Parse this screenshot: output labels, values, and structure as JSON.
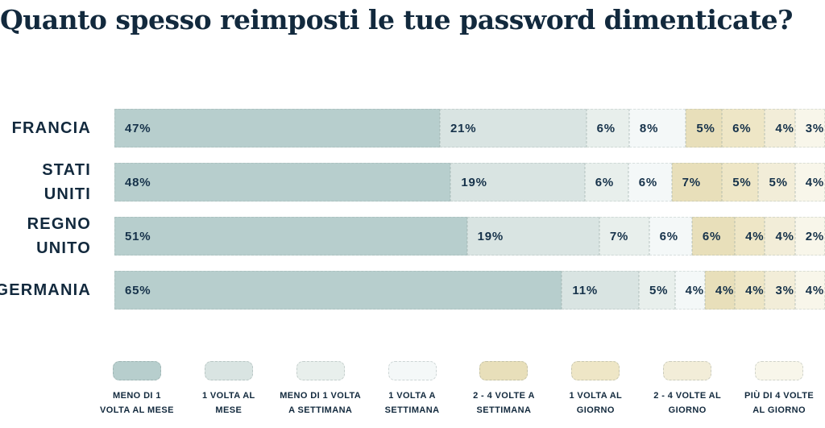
{
  "title": "Quanto spesso reimposti le tue password dimenticate?",
  "colors": {
    "text_dark": "#12293d",
    "value_label": "#16324a",
    "background": "#ffffff"
  },
  "chart_data": {
    "type": "bar",
    "variant": "horizontal-stacked",
    "title": "Quanto spesso reimposti le tue password dimenticate?",
    "unit": "%",
    "xlim": [
      0,
      100
    ],
    "grid": false,
    "legend_position": "bottom",
    "categories": [
      "FRANCIA",
      "STATI UNITI",
      "REGNO UNITO",
      "GERMANIA"
    ],
    "category_display": [
      "FRANCIA",
      "STATI\nUNITI",
      "REGNO\nUNITO",
      "GERMANIA"
    ],
    "series": [
      {
        "name": "MENO DI 1 VOLTA AL MESE",
        "legend_display": "MENO DI 1\nVOLTA AL MESE",
        "color": "#b7cecd",
        "values": [
          47,
          48,
          51,
          65
        ]
      },
      {
        "name": "1 VOLTA AL MESE",
        "legend_display": "1 VOLTA AL\nMESE",
        "color": "#d9e4e2",
        "values": [
          21,
          19,
          19,
          11
        ]
      },
      {
        "name": "MENO DI 1 VOLTA A SETTIMANA",
        "legend_display": "MENO DI 1 VOLTA\nA SETTIMANA",
        "color": "#e8efec",
        "values": [
          6,
          6,
          7,
          5
        ]
      },
      {
        "name": "1 VOLTA A SETTIMANA",
        "legend_display": "1 VOLTA A\nSETTIMANA",
        "color": "#f4f8f8",
        "values": [
          8,
          6,
          6,
          4
        ]
      },
      {
        "name": "2 - 4 VOLTE A SETTIMANA",
        "legend_display": "2 - 4 VOLTE A\nSETTIMANA",
        "color": "#e8dfba",
        "values": [
          5,
          7,
          6,
          4
        ]
      },
      {
        "name": "1 VOLTA AL GIORNO",
        "legend_display": "1 VOLTA AL\nGIORNO",
        "color": "#eee6c6",
        "values": [
          6,
          5,
          4,
          4
        ]
      },
      {
        "name": "2 - 4 VOLTE AL GIORNO",
        "legend_display": "2 - 4 VOLTE AL\nGIORNO",
        "color": "#f2edd8",
        "values": [
          4,
          5,
          4,
          3
        ]
      },
      {
        "name": "PIÙ DI 4 VOLTE AL GIORNO",
        "legend_display": "PIÙ DI 4 VOLTE\nAL GIORNO",
        "color": "#f8f6ea",
        "values": [
          3,
          4,
          2,
          4
        ]
      }
    ]
  }
}
